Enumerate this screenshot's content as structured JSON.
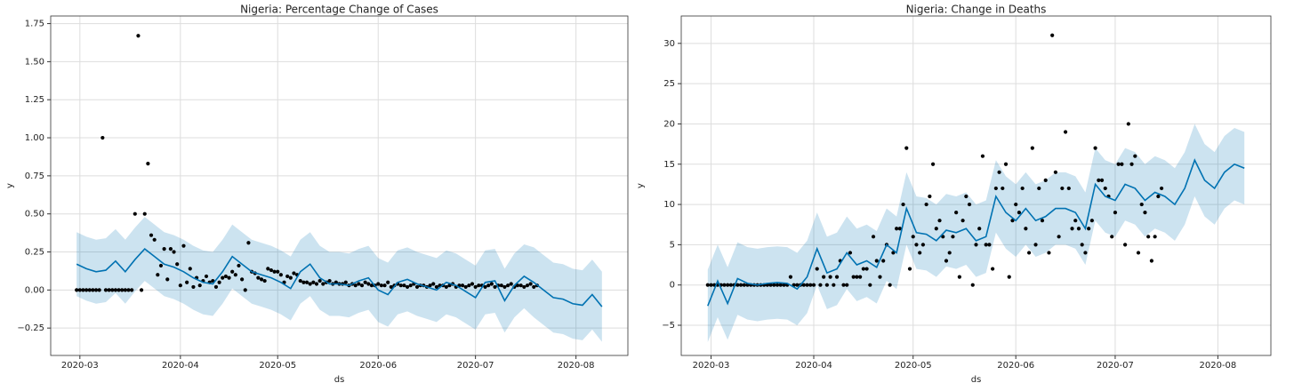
{
  "chart_data": [
    {
      "type": "forecast",
      "title": "Nigeria: Percentage Change of Cases",
      "x_label": "ds",
      "y_label": "y",
      "xlim": [
        -9,
        169
      ],
      "ylim": [
        -0.43,
        1.8
      ],
      "grid": true,
      "point_color": "#000000",
      "line_color": "#0072B2",
      "band_color": "#0072B2",
      "xticks": [
        {
          "value": 0,
          "label": "2020-03"
        },
        {
          "value": 31,
          "label": "2020-04"
        },
        {
          "value": 61,
          "label": "2020-05"
        },
        {
          "value": 92,
          "label": "2020-06"
        },
        {
          "value": 122,
          "label": "2020-07"
        },
        {
          "value": 153,
          "label": "2020-08"
        }
      ],
      "yticks": [
        {
          "value": -0.25,
          "label": "−0.25"
        },
        {
          "value": 0,
          "label": "0.00"
        },
        {
          "value": 0.25,
          "label": "0.25"
        },
        {
          "value": 0.5,
          "label": "0.50"
        },
        {
          "value": 0.75,
          "label": "0.75"
        },
        {
          "value": 1,
          "label": "1.00"
        },
        {
          "value": 1.25,
          "label": "1.25"
        },
        {
          "value": 1.5,
          "label": "1.50"
        },
        {
          "value": 1.75,
          "label": "1.75"
        }
      ],
      "points": {
        "x": [
          -1,
          0,
          1,
          2,
          3,
          4,
          5,
          6,
          7,
          8,
          9,
          10,
          11,
          12,
          13,
          14,
          15,
          16,
          17,
          18,
          19,
          20,
          21,
          22,
          23,
          24,
          25,
          26,
          27,
          28,
          29,
          30,
          31,
          32,
          33,
          34,
          35,
          36,
          37,
          38,
          39,
          40,
          41,
          42,
          43,
          44,
          45,
          46,
          47,
          48,
          49,
          50,
          51,
          52,
          53,
          54,
          55,
          56,
          57,
          58,
          59,
          60,
          61,
          62,
          63,
          64,
          65,
          66,
          67,
          68,
          69,
          70,
          71,
          72,
          73,
          74,
          75,
          76,
          77,
          78,
          79,
          80,
          81,
          82,
          83,
          84,
          85,
          86,
          87,
          88,
          89,
          90,
          91,
          92,
          93,
          94,
          95,
          96,
          97,
          98,
          99,
          100,
          101,
          102,
          103,
          104,
          105,
          106,
          107,
          108,
          109,
          110,
          111,
          112,
          113,
          114,
          115,
          116,
          117,
          118,
          119,
          120,
          121,
          122,
          123,
          124,
          125,
          126,
          127,
          128,
          129,
          130,
          131,
          132,
          133,
          134,
          135,
          136,
          137,
          138,
          139,
          140,
          141
        ],
        "values": [
          0,
          0,
          0,
          0,
          0,
          0,
          0,
          0,
          1.0,
          0,
          0,
          0,
          0,
          0,
          0,
          0,
          0,
          0,
          0.5,
          1.67,
          0,
          0.5,
          0.83,
          0.36,
          0.33,
          0.1,
          0.16,
          0.27,
          0.07,
          0.27,
          0.25,
          0.17,
          0.03,
          0.29,
          0.05,
          0.14,
          0.02,
          0.08,
          0.03,
          0.06,
          0.09,
          0.05,
          0.06,
          0.02,
          0.05,
          0.08,
          0.09,
          0.08,
          0.12,
          0.1,
          0.16,
          0.07,
          0.0,
          0.31,
          0.12,
          0.11,
          0.08,
          0.07,
          0.06,
          0.14,
          0.13,
          0.12,
          0.12,
          0.1,
          0.05,
          0.09,
          0.08,
          0.11,
          0.1,
          0.06,
          0.05,
          0.05,
          0.04,
          0.05,
          0.04,
          0.06,
          0.04,
          0.05,
          0.06,
          0.04,
          0.05,
          0.04,
          0.04,
          0.05,
          0.03,
          0.04,
          0.03,
          0.04,
          0.03,
          0.05,
          0.04,
          0.03,
          0.03,
          0.04,
          0.03,
          0.03,
          0.05,
          0.02,
          0.03,
          0.04,
          0.03,
          0.03,
          0.02,
          0.03,
          0.04,
          0.02,
          0.03,
          0.03,
          0.02,
          0.03,
          0.04,
          0.02,
          0.03,
          0.03,
          0.02,
          0.03,
          0.04,
          0.02,
          0.03,
          0.03,
          0.02,
          0.03,
          0.04,
          0.02,
          0.03,
          0.03,
          0.02,
          0.03,
          0.04,
          0.02,
          0.03,
          0.03,
          0.02,
          0.03,
          0.04,
          0.02,
          0.03,
          0.03,
          0.02,
          0.03,
          0.04,
          0.02,
          0.03
        ]
      },
      "fit": {
        "x": [
          -1,
          2,
          5,
          8,
          11,
          14,
          17,
          20,
          23,
          26,
          29,
          32,
          35,
          38,
          41,
          44,
          47,
          50,
          53,
          56,
          59,
          62,
          65,
          68,
          71,
          74,
          77,
          80,
          83,
          86,
          89,
          92,
          95,
          98,
          101,
          104,
          107,
          110,
          113,
          116,
          119,
          122,
          125,
          128,
          131,
          134,
          137,
          140,
          143,
          146,
          149,
          152,
          155,
          158,
          161
        ],
        "values": [
          0.17,
          0.14,
          0.12,
          0.13,
          0.19,
          0.12,
          0.2,
          0.27,
          0.22,
          0.17,
          0.15,
          0.12,
          0.08,
          0.05,
          0.04,
          0.12,
          0.22,
          0.17,
          0.12,
          0.1,
          0.08,
          0.05,
          0.01,
          0.12,
          0.17,
          0.08,
          0.04,
          0.04,
          0.03,
          0.06,
          0.08,
          0.0,
          -0.03,
          0.05,
          0.07,
          0.04,
          0.02,
          0.0,
          0.05,
          0.03,
          -0.01,
          -0.05,
          0.05,
          0.06,
          -0.07,
          0.03,
          0.09,
          0.05,
          0.0,
          -0.05,
          -0.06,
          -0.09,
          -0.1,
          -0.03,
          -0.11
        ],
        "upper": [
          0.38,
          0.35,
          0.33,
          0.34,
          0.4,
          0.33,
          0.41,
          0.48,
          0.43,
          0.38,
          0.36,
          0.33,
          0.29,
          0.26,
          0.25,
          0.33,
          0.43,
          0.38,
          0.33,
          0.31,
          0.29,
          0.26,
          0.22,
          0.33,
          0.38,
          0.29,
          0.25,
          0.25,
          0.24,
          0.27,
          0.29,
          0.21,
          0.18,
          0.26,
          0.28,
          0.25,
          0.23,
          0.21,
          0.26,
          0.24,
          0.2,
          0.16,
          0.26,
          0.27,
          0.14,
          0.24,
          0.3,
          0.28,
          0.23,
          0.18,
          0.17,
          0.14,
          0.13,
          0.2,
          0.12
        ],
        "lower": [
          -0.04,
          -0.07,
          -0.09,
          -0.08,
          -0.02,
          -0.09,
          -0.01,
          0.06,
          0.01,
          -0.04,
          -0.06,
          -0.09,
          -0.13,
          -0.16,
          -0.17,
          -0.09,
          0.01,
          -0.04,
          -0.09,
          -0.11,
          -0.13,
          -0.16,
          -0.2,
          -0.09,
          -0.04,
          -0.13,
          -0.17,
          -0.17,
          -0.18,
          -0.15,
          -0.13,
          -0.21,
          -0.24,
          -0.16,
          -0.14,
          -0.17,
          -0.19,
          -0.21,
          -0.16,
          -0.18,
          -0.22,
          -0.26,
          -0.16,
          -0.15,
          -0.28,
          -0.18,
          -0.12,
          -0.18,
          -0.23,
          -0.28,
          -0.29,
          -0.32,
          -0.33,
          -0.26,
          -0.34
        ]
      }
    },
    {
      "type": "forecast",
      "title": "Nigeria: Change in Deaths",
      "x_label": "ds",
      "y_label": "y",
      "xlim": [
        -9,
        169
      ],
      "ylim": [
        -8.75,
        33.4
      ],
      "grid": true,
      "point_color": "#000000",
      "line_color": "#0072B2",
      "band_color": "#0072B2",
      "xticks": [
        {
          "value": 0,
          "label": "2020-03"
        },
        {
          "value": 31,
          "label": "2020-04"
        },
        {
          "value": 61,
          "label": "2020-05"
        },
        {
          "value": 92,
          "label": "2020-06"
        },
        {
          "value": 122,
          "label": "2020-07"
        },
        {
          "value": 153,
          "label": "2020-08"
        }
      ],
      "yticks": [
        {
          "value": -5,
          "label": "−5"
        },
        0,
        5,
        10,
        15,
        20,
        25,
        30
      ],
      "points": {
        "x": [
          -1,
          0,
          1,
          2,
          3,
          4,
          5,
          6,
          7,
          8,
          9,
          10,
          11,
          12,
          13,
          14,
          15,
          16,
          17,
          18,
          19,
          20,
          21,
          22,
          23,
          24,
          25,
          26,
          27,
          28,
          29,
          30,
          31,
          32,
          33,
          34,
          35,
          36,
          37,
          38,
          39,
          40,
          41,
          42,
          43,
          44,
          45,
          46,
          47,
          48,
          49,
          50,
          51,
          52,
          53,
          54,
          55,
          56,
          57,
          58,
          59,
          60,
          61,
          62,
          63,
          64,
          65,
          66,
          67,
          68,
          69,
          70,
          71,
          72,
          73,
          74,
          75,
          76,
          77,
          78,
          79,
          80,
          81,
          82,
          83,
          84,
          85,
          86,
          87,
          88,
          89,
          90,
          91,
          92,
          93,
          94,
          95,
          96,
          97,
          98,
          99,
          100,
          101,
          102,
          103,
          104,
          105,
          106,
          107,
          108,
          109,
          110,
          111,
          112,
          113,
          114,
          115,
          116,
          117,
          118,
          119,
          120,
          121,
          122,
          123,
          124,
          125,
          126,
          127,
          128,
          129,
          130,
          131,
          132,
          133,
          134,
          135,
          136
        ],
        "values": [
          0,
          0,
          0,
          0,
          0,
          0,
          0,
          0,
          0,
          0,
          0,
          0,
          0,
          0,
          0,
          0,
          0,
          0,
          0,
          0,
          0,
          0,
          0,
          0,
          0,
          1,
          0,
          0,
          0,
          0,
          0,
          0,
          0,
          2,
          0,
          1,
          0,
          1,
          0,
          1,
          3,
          0,
          0,
          4,
          1,
          1,
          1,
          2,
          2,
          0,
          6,
          3,
          1,
          3,
          5,
          0,
          4,
          7,
          7,
          10,
          17,
          2,
          6,
          5,
          4,
          5,
          10,
          11,
          15,
          7,
          8,
          6,
          3,
          4,
          6,
          9,
          1,
          8,
          11,
          10,
          0,
          5,
          7,
          16,
          5,
          5,
          2,
          12,
          14,
          12,
          15,
          1,
          8,
          10,
          9,
          12,
          7,
          4,
          17,
          5,
          12,
          8,
          13,
          4,
          31,
          14,
          6,
          12,
          19,
          12,
          7,
          8,
          7,
          5,
          4,
          7,
          8,
          17,
          13,
          13,
          12,
          11,
          6,
          9,
          15,
          15,
          5,
          20,
          15,
          16,
          4,
          10,
          9,
          6,
          3,
          6,
          11,
          12
        ]
      },
      "fit": {
        "x": [
          -1,
          2,
          5,
          8,
          11,
          14,
          17,
          20,
          23,
          26,
          29,
          32,
          35,
          38,
          41,
          44,
          47,
          50,
          53,
          56,
          59,
          62,
          65,
          68,
          71,
          74,
          77,
          80,
          83,
          86,
          89,
          92,
          95,
          98,
          101,
          104,
          107,
          110,
          113,
          116,
          119,
          122,
          125,
          128,
          131,
          134,
          137,
          140,
          143,
          146,
          149,
          152,
          155,
          158,
          161
        ],
        "values": [
          -2.6,
          0.5,
          -2.3,
          0.8,
          0.2,
          0.0,
          0.2,
          0.3,
          0.2,
          -0.5,
          1.0,
          4.5,
          1.5,
          2.0,
          4.0,
          2.5,
          3.0,
          2.2,
          5.0,
          4.0,
          9.5,
          6.5,
          6.3,
          5.5,
          6.8,
          6.5,
          7.0,
          5.5,
          6.0,
          11.0,
          9.0,
          8.0,
          9.5,
          8.0,
          8.5,
          9.5,
          9.5,
          9.0,
          7.0,
          12.5,
          11.0,
          10.5,
          12.5,
          12.0,
          10.5,
          11.5,
          11.0,
          10.0,
          12.0,
          15.5,
          13.0,
          12.0,
          14.0,
          15.0,
          14.5
        ],
        "upper": [
          1.9,
          5.0,
          2.2,
          5.3,
          4.7,
          4.5,
          4.7,
          4.8,
          4.7,
          4.0,
          5.5,
          9.0,
          6.0,
          6.5,
          8.5,
          7.0,
          7.5,
          6.7,
          9.5,
          8.5,
          14.0,
          11.0,
          10.8,
          10.0,
          11.3,
          11.0,
          11.5,
          10.0,
          10.5,
          15.5,
          13.5,
          12.5,
          14.0,
          12.5,
          13.0,
          14.0,
          14.0,
          13.5,
          11.5,
          17.0,
          15.5,
          15.0,
          17.0,
          16.5,
          15.0,
          16.0,
          15.5,
          14.5,
          16.5,
          20.0,
          17.5,
          16.5,
          18.5,
          19.5,
          19.0
        ],
        "lower": [
          -7.1,
          -4.0,
          -6.8,
          -3.7,
          -4.3,
          -4.5,
          -4.3,
          -4.2,
          -4.3,
          -5.0,
          -3.5,
          0.0,
          -3.0,
          -2.5,
          -0.5,
          -2.0,
          -1.5,
          -2.3,
          0.5,
          -0.5,
          5.0,
          2.0,
          1.8,
          1.0,
          2.3,
          2.0,
          2.5,
          1.0,
          1.5,
          6.5,
          4.5,
          3.5,
          5.0,
          3.5,
          4.0,
          5.0,
          5.0,
          4.5,
          2.5,
          8.0,
          6.5,
          6.0,
          8.0,
          7.5,
          6.0,
          7.0,
          6.5,
          5.5,
          7.5,
          11.0,
          8.5,
          7.5,
          9.5,
          10.5,
          10.0
        ]
      }
    }
  ]
}
